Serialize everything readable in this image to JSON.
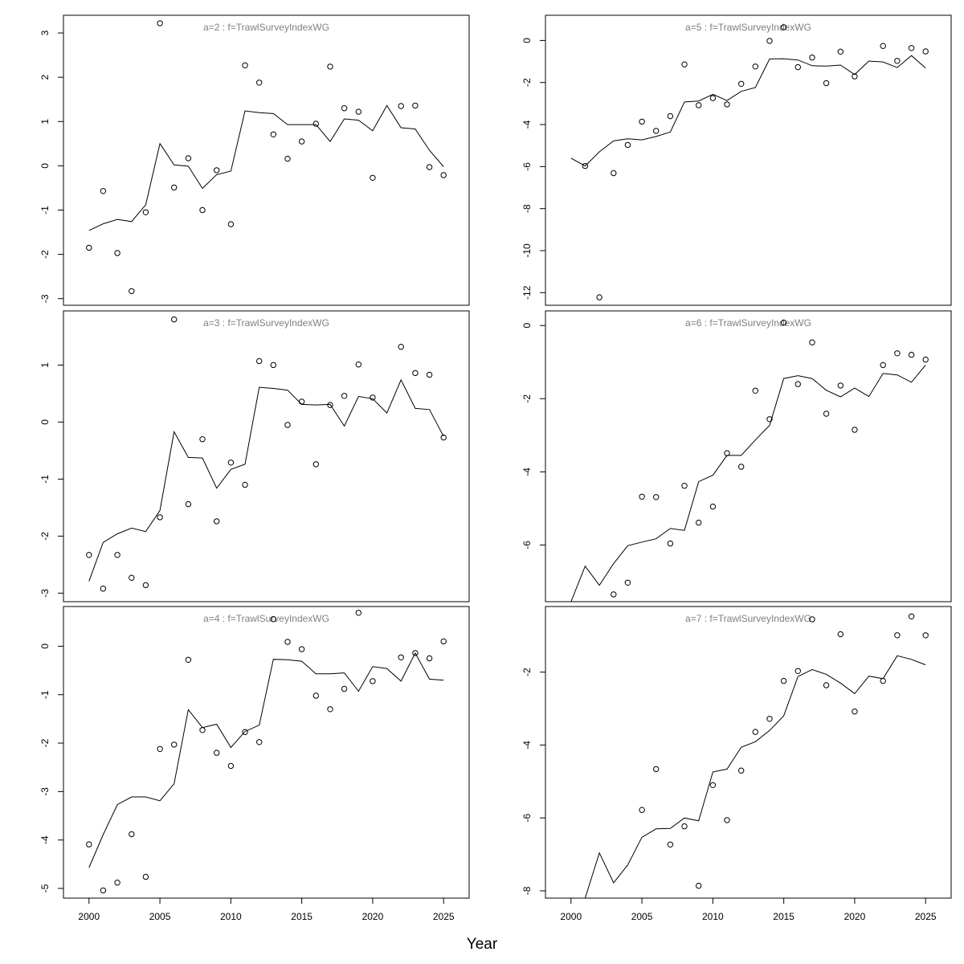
{
  "xlabel": "Year",
  "chart_data": [
    {
      "type": "line",
      "title": "a=2  :  f=TrawlSurveyIndexWG",
      "x": [
        2000,
        2001,
        2002,
        2003,
        2004,
        2005,
        2006,
        2007,
        2008,
        2009,
        2010,
        2011,
        2012,
        2013,
        2014,
        2015,
        2016,
        2017,
        2018,
        2019,
        2020,
        2021,
        2022,
        2023,
        2024,
        2025
      ],
      "series": [
        {
          "role": "observed",
          "marker": "open-circle",
          "values": [
            -1.85,
            -0.57,
            -1.97,
            -2.83,
            -1.05,
            3.22,
            -0.49,
            0.17,
            -1.0,
            -0.1,
            -1.32,
            2.27,
            1.88,
            0.71,
            0.16,
            0.55,
            0.95,
            2.24,
            1.3,
            1.22,
            -0.27,
            null,
            1.35,
            1.36,
            -0.03,
            -0.21
          ]
        },
        {
          "role": "fitted",
          "marker": "line",
          "values": [
            -1.46,
            -1.31,
            -1.21,
            -1.26,
            -0.88,
            0.5,
            0.02,
            -0.01,
            -0.51,
            -0.2,
            -0.12,
            1.24,
            1.2,
            1.18,
            0.93,
            0.93,
            0.93,
            0.55,
            1.06,
            1.03,
            0.79,
            1.36,
            0.86,
            0.83,
            0.35,
            -0.02
          ]
        }
      ],
      "ylim": [
        -3.15,
        3.4
      ],
      "yticks": [
        -3,
        -2,
        -1,
        0,
        1,
        2,
        3
      ],
      "ytick_labels": [
        "-3",
        "-2",
        "-1",
        "0",
        "1",
        "2",
        "3"
      ]
    },
    {
      "type": "line",
      "title": "a=3  :  f=TrawlSurveyIndexWG",
      "x": [
        2000,
        2001,
        2002,
        2003,
        2004,
        2005,
        2006,
        2007,
        2008,
        2009,
        2010,
        2011,
        2012,
        2013,
        2014,
        2015,
        2016,
        2017,
        2018,
        2019,
        2020,
        2021,
        2022,
        2023,
        2024,
        2025
      ],
      "series": [
        {
          "role": "observed",
          "marker": "open-circle",
          "values": [
            -2.33,
            -2.92,
            -2.33,
            -2.73,
            -2.86,
            -1.67,
            1.8,
            -1.44,
            -0.3,
            -1.74,
            -0.71,
            -1.1,
            1.07,
            1.0,
            -0.05,
            0.36,
            -0.74,
            0.3,
            0.46,
            1.01,
            0.43,
            null,
            1.32,
            0.86,
            0.83,
            -0.27
          ]
        },
        {
          "role": "fitted",
          "marker": "line",
          "values": [
            -2.79,
            -2.11,
            -1.96,
            -1.86,
            -1.92,
            -1.55,
            -0.17,
            -0.62,
            -0.63,
            -1.16,
            -0.83,
            -0.74,
            0.61,
            0.59,
            0.56,
            0.31,
            0.3,
            0.31,
            -0.07,
            0.45,
            0.41,
            0.16,
            0.74,
            0.24,
            0.22,
            -0.25
          ]
        }
      ],
      "ylim": [
        -3.15,
        1.95
      ],
      "yticks": [
        -3,
        -2,
        -1,
        0,
        1
      ],
      "ytick_labels": [
        "-3",
        "-2",
        "-1",
        "0",
        "1"
      ]
    },
    {
      "type": "line",
      "title": "a=4  :  f=TrawlSurveyIndexWG",
      "x": [
        2000,
        2001,
        2002,
        2003,
        2004,
        2005,
        2006,
        2007,
        2008,
        2009,
        2010,
        2011,
        2012,
        2013,
        2014,
        2015,
        2016,
        2017,
        2018,
        2019,
        2020,
        2021,
        2022,
        2023,
        2024,
        2025
      ],
      "series": [
        {
          "role": "observed",
          "marker": "open-circle",
          "values": [
            -4.09,
            -5.04,
            -4.88,
            -3.88,
            -4.76,
            -2.12,
            -2.03,
            -0.28,
            -1.73,
            -2.2,
            -2.47,
            -1.77,
            -1.98,
            0.56,
            0.09,
            -0.06,
            -1.02,
            -1.3,
            -0.88,
            0.69,
            -0.72,
            null,
            -0.23,
            -0.14,
            -0.25,
            0.1
          ]
        },
        {
          "role": "fitted",
          "marker": "line",
          "values": [
            -4.57,
            -3.89,
            -3.27,
            -3.11,
            -3.11,
            -3.19,
            -2.84,
            -1.31,
            -1.68,
            -1.61,
            -2.09,
            -1.76,
            -1.63,
            -0.27,
            -0.28,
            -0.31,
            -0.57,
            -0.57,
            -0.55,
            -0.93,
            -0.42,
            -0.46,
            -0.72,
            -0.14,
            -0.68,
            -0.7
          ]
        }
      ],
      "ylim": [
        -5.2,
        0.82
      ],
      "yticks": [
        -5,
        -4,
        -3,
        -2,
        -1,
        0
      ],
      "ytick_labels": [
        "-5",
        "-4",
        "-3",
        "-2",
        "-1",
        "0"
      ]
    },
    {
      "type": "line",
      "title": "a=5  :  f=TrawlSurveyIndexWG",
      "x": [
        2000,
        2001,
        2002,
        2003,
        2004,
        2005,
        2006,
        2007,
        2008,
        2009,
        2010,
        2011,
        2012,
        2013,
        2014,
        2015,
        2016,
        2017,
        2018,
        2019,
        2020,
        2021,
        2022,
        2023,
        2024,
        2025
      ],
      "series": [
        {
          "role": "observed",
          "marker": "open-circle",
          "values": [
            null,
            -5.97,
            -12.22,
            -6.31,
            -4.97,
            -3.86,
            -4.3,
            -3.6,
            -1.14,
            -3.08,
            -2.74,
            -3.04,
            -2.06,
            -1.24,
            -0.02,
            0.63,
            -1.27,
            -0.81,
            -2.03,
            -0.53,
            -1.71,
            null,
            -0.26,
            -0.97,
            -0.36,
            -0.52
          ]
        },
        {
          "role": "fitted",
          "marker": "line",
          "values": [
            -5.6,
            -5.97,
            -5.3,
            -4.78,
            -4.68,
            -4.73,
            -4.57,
            -4.36,
            -2.93,
            -2.88,
            -2.56,
            -2.86,
            -2.42,
            -2.24,
            -0.88,
            -0.87,
            -0.93,
            -1.2,
            -1.22,
            -1.17,
            -1.62,
            -0.98,
            -1.02,
            -1.29,
            -0.72,
            -1.31
          ]
        }
      ],
      "ylim": [
        -12.6,
        1.2
      ],
      "yticks": [
        -12,
        -10,
        -8,
        -6,
        -4,
        -2,
        0
      ],
      "ytick_labels": [
        "-12",
        "-10",
        "-8",
        "-6",
        "-4",
        "-2",
        "0"
      ]
    },
    {
      "type": "line",
      "title": "a=6  :  f=TrawlSurveyIndexWG",
      "x": [
        2000,
        2001,
        2002,
        2003,
        2004,
        2005,
        2006,
        2007,
        2008,
        2009,
        2010,
        2011,
        2012,
        2013,
        2014,
        2015,
        2016,
        2017,
        2018,
        2019,
        2020,
        2021,
        2022,
        2023,
        2024,
        2025
      ],
      "series": [
        {
          "role": "observed",
          "marker": "open-circle",
          "values": [
            null,
            null,
            null,
            -7.35,
            -7.03,
            -4.68,
            -4.69,
            -5.96,
            -4.38,
            -5.39,
            -4.95,
            -3.49,
            -3.86,
            -1.78,
            -2.56,
            0.08,
            -1.6,
            -0.46,
            -2.41,
            -1.64,
            -2.85,
            null,
            -1.08,
            -0.76,
            -0.8,
            -0.93
          ]
        },
        {
          "role": "fitted",
          "marker": "line",
          "values": [
            -7.55,
            -6.58,
            -7.1,
            -6.51,
            -6.02,
            -5.92,
            -5.83,
            -5.55,
            -5.6,
            -4.27,
            -4.09,
            -3.55,
            -3.55,
            -3.13,
            -2.73,
            -1.45,
            -1.37,
            -1.45,
            -1.77,
            -1.95,
            -1.71,
            -1.94,
            -1.31,
            -1.35,
            -1.55,
            -1.08
          ]
        }
      ],
      "ylim": [
        -7.55,
        0.4
      ],
      "yticks": [
        -6,
        -4,
        -2,
        0
      ],
      "ytick_labels": [
        "-6",
        "-4",
        "-2",
        "0"
      ]
    },
    {
      "type": "line",
      "title": "a=7  :  f=TrawlSurveyIndexWG",
      "x": [
        2000,
        2001,
        2002,
        2003,
        2004,
        2005,
        2006,
        2007,
        2008,
        2009,
        2010,
        2011,
        2012,
        2013,
        2014,
        2015,
        2016,
        2017,
        2018,
        2019,
        2020,
        2021,
        2022,
        2023,
        2024,
        2025
      ],
      "series": [
        {
          "role": "observed",
          "marker": "open-circle",
          "values": [
            null,
            null,
            null,
            null,
            null,
            -5.78,
            -4.66,
            -6.73,
            -6.23,
            -7.86,
            -5.1,
            -6.06,
            -4.7,
            -3.64,
            -3.28,
            -2.24,
            -1.97,
            -0.55,
            -2.36,
            -0.96,
            -3.08,
            null,
            -2.24,
            -0.99,
            -0.47,
            -0.99
          ]
        },
        {
          "role": "fitted",
          "marker": "line",
          "values": [
            -8.25,
            -8.2,
            -6.96,
            -7.78,
            -7.29,
            -6.53,
            -6.3,
            -6.29,
            -6.0,
            -6.08,
            -4.74,
            -4.66,
            -4.06,
            -3.91,
            -3.6,
            -3.2,
            -2.12,
            -1.93,
            -2.06,
            -2.3,
            -2.59,
            -2.11,
            -2.18,
            -1.55,
            -1.65,
            -1.8
          ]
        }
      ],
      "ylim": [
        -8.2,
        -0.2
      ],
      "yticks": [
        -8,
        -6,
        -4,
        -2
      ],
      "ytick_labels": [
        "-8",
        "-6",
        "-4",
        "-2"
      ]
    }
  ],
  "xaxis": {
    "ticks": [
      2000,
      2005,
      2010,
      2015,
      2020,
      2025
    ],
    "tick_labels": [
      "2000",
      "2005",
      "2010",
      "2015",
      "2020",
      "2025"
    ],
    "xlim": [
      1998.2,
      2026.8
    ]
  },
  "colors": {
    "line": "#000000",
    "points": "#000000",
    "title": "#808080",
    "frame": "#000000"
  }
}
